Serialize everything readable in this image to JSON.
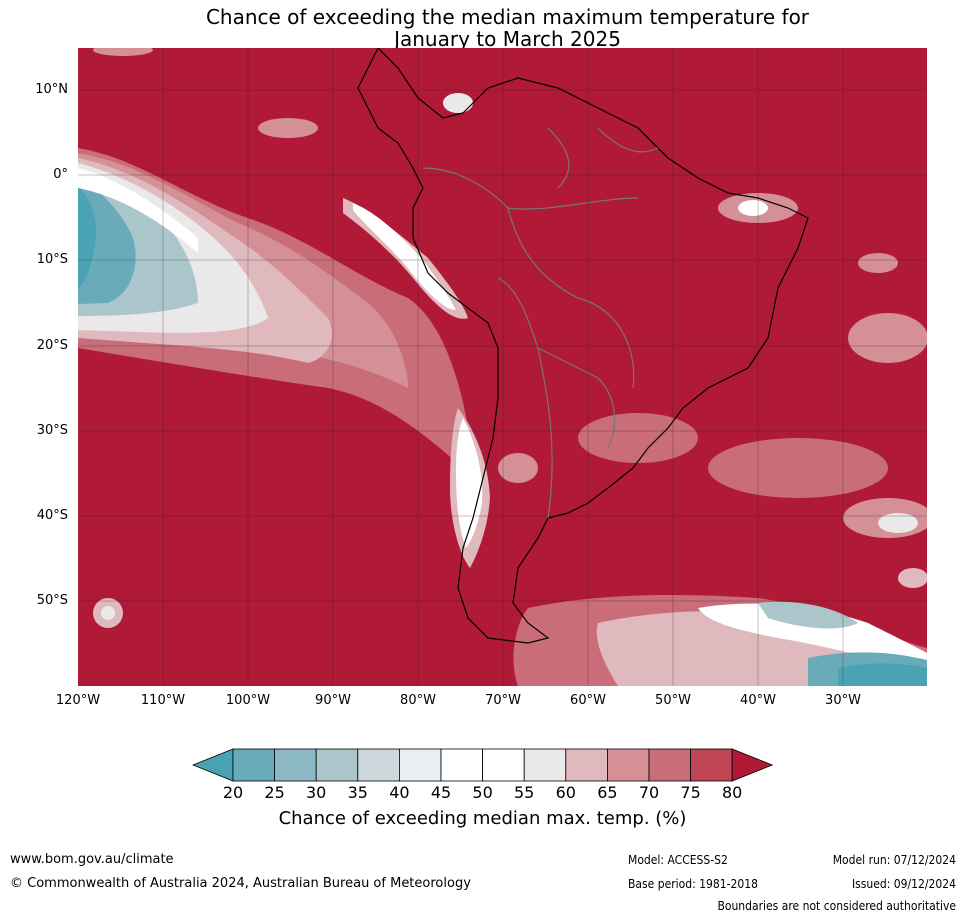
{
  "title_line1": "Chance of exceeding the median maximum temperature for",
  "title_line2": "January to March 2025",
  "lat_labels": [
    "10°N",
    "0°",
    "10°S",
    "20°S",
    "30°S",
    "40°S",
    "50°S"
  ],
  "lon_labels": [
    "120°W",
    "110°W",
    "100°W",
    "90°W",
    "80°W",
    "70°W",
    "60°W",
    "50°W",
    "40°W",
    "30°W"
  ],
  "colorbar": {
    "ticks": [
      "20",
      "25",
      "30",
      "35",
      "40",
      "45",
      "50",
      "55",
      "60",
      "65",
      "70",
      "75",
      "80"
    ],
    "colors": [
      "#4aa3b4",
      "#6aabb9",
      "#8bb8c4",
      "#abc6cb",
      "#ccd8dc",
      "#e9eff2",
      "#ffffff",
      "#ffffff",
      "#ebe8ea",
      "#e0b9be",
      "#d48f97",
      "#c96d78",
      "#bf4554",
      "#b01a37"
    ],
    "label": "Chance of exceeding median max. temp. (%)"
  },
  "map_colors": {
    "high": "#b01a37",
    "mid": "#c96d78",
    "light_pink": "#e0b9be",
    "near_white": "#ebe8ea",
    "white": "#ffffff",
    "light_blue": "#abc6cb",
    "blue": "#4aa3b4"
  },
  "footer": {
    "url": "www.bom.gov.au/climate",
    "copyright": "© Commonwealth of Australia 2024, Australian Bureau of Meteorology",
    "model": "Model: ACCESS-S2",
    "base_period": "Base period: 1981-2018",
    "model_run": "Model run: 07/12/2024",
    "issued": "Issued: 09/12/2024",
    "disclaimer": "Boundaries are not considered authoritative"
  }
}
